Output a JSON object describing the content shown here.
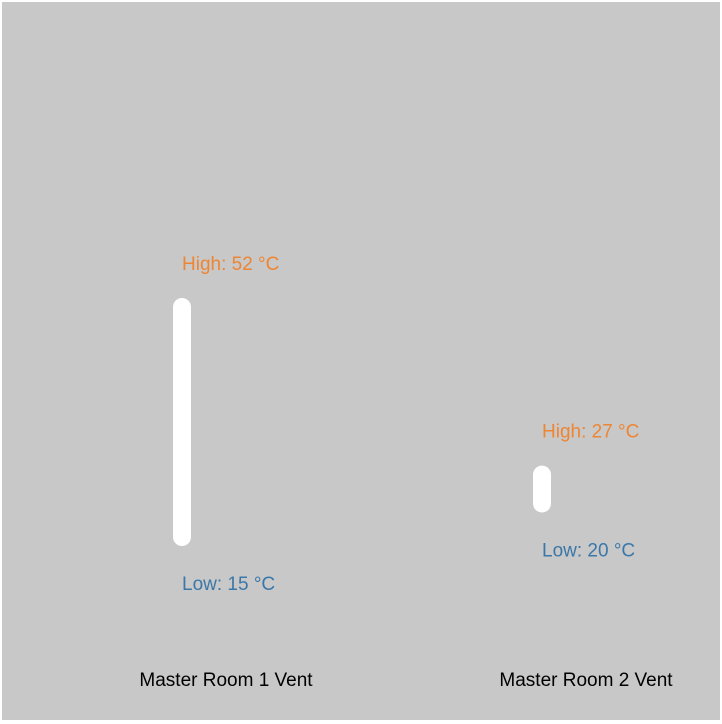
{
  "chart_data": {
    "type": "range-bar",
    "unit": "°C",
    "title": "",
    "xlabel": "",
    "ylabel": "",
    "categories": [
      "Master Room 1 Vent",
      "Master Room 2 Vent"
    ],
    "series": [
      {
        "low": [
          15,
          20
        ],
        "high": [
          52,
          27
        ]
      }
    ],
    "high_labels": [
      "High: 52 °C",
      "High: 27 °C"
    ],
    "low_labels": [
      "Low: 15 °C",
      "Low: 20 °C"
    ],
    "ylim": [
      0,
      80
    ],
    "grid": false,
    "legend": "none",
    "colors": {
      "background": "#c8c8c8",
      "bar": "#ffffff",
      "high_text": "#ee8533",
      "low_text": "#3b77a8",
      "category_text": "#000000"
    }
  }
}
